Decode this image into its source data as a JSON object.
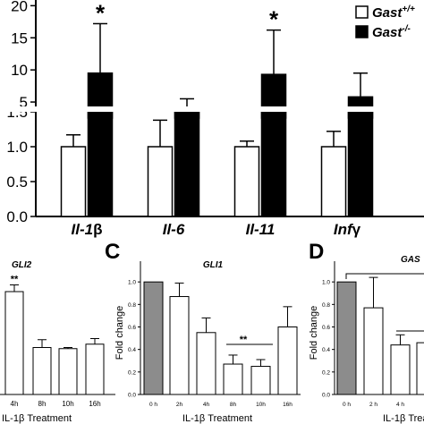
{
  "chart_data": [
    {
      "panel": "",
      "type": "bar",
      "categories": [
        "Il-1β",
        "Il-6",
        "Il-11",
        "Infγ"
      ],
      "series": [
        {
          "name": "Gast+/+",
          "values": [
            1.0,
            1.0,
            1.0,
            1.0
          ],
          "errors": [
            0.17,
            0.38,
            0.08,
            0.22
          ]
        },
        {
          "name": "Gast-/-",
          "values": [
            9.5,
            3.5,
            9.3,
            5.8
          ],
          "errors": [
            7.7,
            2.0,
            6.9,
            3.7
          ]
        }
      ],
      "significance": [
        "*",
        "",
        "*",
        ""
      ],
      "lower_ticks": [
        "0.0",
        "0.5",
        "1.0",
        "1.5"
      ],
      "upper_ticks": [
        "5",
        "10",
        "15",
        "20"
      ],
      "ylim_lower": [
        0,
        1.5
      ],
      "ylim_upper": [
        2.5,
        22
      ],
      "legend": {
        "placement": "top-right",
        "items": [
          {
            "base": "Gast",
            "sup": "+/+",
            "fill": "#ffffff"
          },
          {
            "base": "Gast",
            "sup": "-/-",
            "fill": "#000000"
          }
        ]
      }
    },
    {
      "panel": "",
      "type": "bar",
      "title": "GLI2",
      "categories": [
        "4h",
        "8h",
        "10h",
        "16h"
      ],
      "values": [
        0.92,
        0.42,
        0.41,
        0.45
      ],
      "errors": [
        0.06,
        0.07,
        0.01,
        0.05
      ],
      "fill": "#ffffff",
      "significance": [
        "**",
        "",
        "",
        ""
      ],
      "xlabel": "IL-1β Treatment",
      "ylim": [
        0,
        1.2
      ]
    },
    {
      "panel": "C",
      "type": "bar",
      "title": "GLI1",
      "categories": [
        "0 h",
        "2h",
        "4h",
        "8h",
        "10h",
        "16h"
      ],
      "values": [
        1.0,
        0.87,
        0.55,
        0.27,
        0.25,
        0.6
      ],
      "errors": [
        0.0,
        0.12,
        0.13,
        0.08,
        0.06,
        0.18
      ],
      "fills": [
        "#8c8c8c",
        "#ffffff",
        "#ffffff",
        "#ffffff",
        "#ffffff",
        "#ffffff"
      ],
      "ylabel": "Fold change",
      "xlabel": "IL-1β Treatment",
      "yticks": [
        "0.0",
        "0.2",
        "0.4",
        "0.6",
        "0.8",
        "1.0"
      ],
      "ylim": [
        0,
        1.2
      ],
      "bracket": {
        "label": "**"
      }
    },
    {
      "panel": "D",
      "type": "bar",
      "title": "GAS",
      "categories": [
        "0 h",
        "2 h",
        "4 h",
        "8"
      ],
      "values": [
        1.0,
        0.77,
        0.44,
        0.46
      ],
      "errors": [
        0.0,
        0.27,
        0.09,
        0.0
      ],
      "fills": [
        "#8c8c8c",
        "#ffffff",
        "#ffffff",
        "#ffffff"
      ],
      "ylabel": "Fold change",
      "xlabel": "IL-1β Treatm",
      "yticks": [
        "0.0",
        "0.2",
        "0.4",
        "0.6",
        "0.8",
        "1.0"
      ],
      "ylim": [
        0,
        1.2
      ]
    }
  ]
}
